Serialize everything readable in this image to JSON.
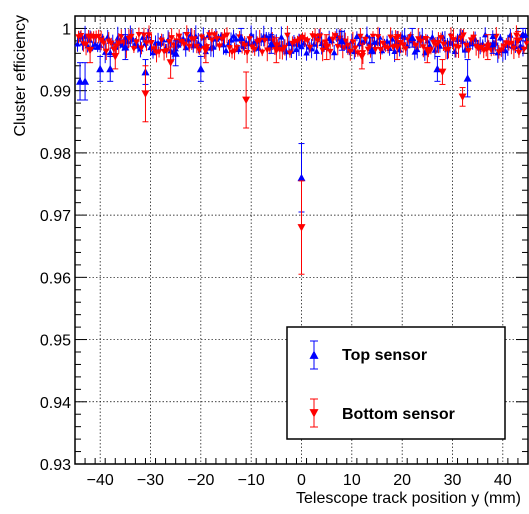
{
  "chart_data": {
    "type": "scatter",
    "xlabel": "Telescope track position y (mm)",
    "ylabel": "Cluster efficiency",
    "xlim": [
      -45,
      45
    ],
    "ylim": [
      0.93,
      1.002
    ],
    "x_ticks": [
      -40,
      -30,
      -20,
      -10,
      0,
      10,
      20,
      30,
      40
    ],
    "x_tick_labels": [
      "−40",
      "−30",
      "−20",
      "−10",
      "0",
      "10",
      "20",
      "30",
      "40"
    ],
    "y_ticks": [
      0.93,
      0.94,
      0.95,
      0.96,
      0.97,
      0.98,
      0.99,
      1
    ],
    "y_tick_labels": [
      "0.93",
      "0.94",
      "0.95",
      "0.96",
      "0.97",
      "0.98",
      "0.99",
      "1"
    ],
    "grid": true,
    "legend_position": "bottom-right",
    "series": [
      {
        "name": "Top sensor",
        "color": "#0000ff",
        "marker": "triangle-up",
        "points": [
          {
            "x": -44,
            "y": 0.9915,
            "err": 0.003
          },
          {
            "x": -43,
            "y": 0.9915,
            "err": 0.003
          },
          {
            "x": -40,
            "y": 0.9935,
            "err": 0.002
          },
          {
            "x": -38,
            "y": 0.9935,
            "err": 0.002
          },
          {
            "x": -35,
            "y": 0.997,
            "err": 0.002
          },
          {
            "x": -31,
            "y": 0.993,
            "err": 0.002
          },
          {
            "x": -25,
            "y": 0.996,
            "err": 0.002
          },
          {
            "x": -20,
            "y": 0.9935,
            "err": 0.002
          },
          {
            "x": -12,
            "y": 0.9985,
            "err": 0.0015
          },
          {
            "x": -6,
            "y": 0.9975,
            "err": 0.0015
          },
          {
            "x": 0,
            "y": 0.976,
            "err": 0.0055
          },
          {
            "x": 8,
            "y": 0.998,
            "err": 0.0015
          },
          {
            "x": 14,
            "y": 0.9965,
            "err": 0.002
          },
          {
            "x": 22,
            "y": 0.9985,
            "err": 0.0015
          },
          {
            "x": 27,
            "y": 0.9935,
            "err": 0.002
          },
          {
            "x": 33,
            "y": 0.992,
            "err": 0.003
          },
          {
            "x": 38,
            "y": 0.9975,
            "err": 0.0015
          },
          {
            "x": 44,
            "y": 0.999,
            "err": 0.001
          }
        ]
      },
      {
        "name": "Bottom sensor",
        "color": "#ff0000",
        "marker": "triangle-down",
        "points": [
          {
            "x": -42,
            "y": 0.9965,
            "err": 0.002
          },
          {
            "x": -37,
            "y": 0.9955,
            "err": 0.002
          },
          {
            "x": -31,
            "y": 0.9895,
            "err": 0.0045
          },
          {
            "x": -26,
            "y": 0.9945,
            "err": 0.0025
          },
          {
            "x": -19,
            "y": 0.9965,
            "err": 0.002
          },
          {
            "x": -11,
            "y": 0.9885,
            "err": 0.0045
          },
          {
            "x": -5,
            "y": 0.9965,
            "err": 0.002
          },
          {
            "x": 0,
            "y": 0.968,
            "err": 0.0075
          },
          {
            "x": 5,
            "y": 0.997,
            "err": 0.002
          },
          {
            "x": 12,
            "y": 0.9955,
            "err": 0.002
          },
          {
            "x": 19,
            "y": 0.997,
            "err": 0.002
          },
          {
            "x": 25,
            "y": 0.9965,
            "err": 0.002
          },
          {
            "x": 28,
            "y": 0.993,
            "err": 0.002
          },
          {
            "x": 32,
            "y": 0.989,
            "err": 0.0015
          },
          {
            "x": 37,
            "y": 0.997,
            "err": 0.002
          },
          {
            "x": 43,
            "y": 0.998,
            "err": 0.0015
          }
        ]
      }
    ]
  }
}
